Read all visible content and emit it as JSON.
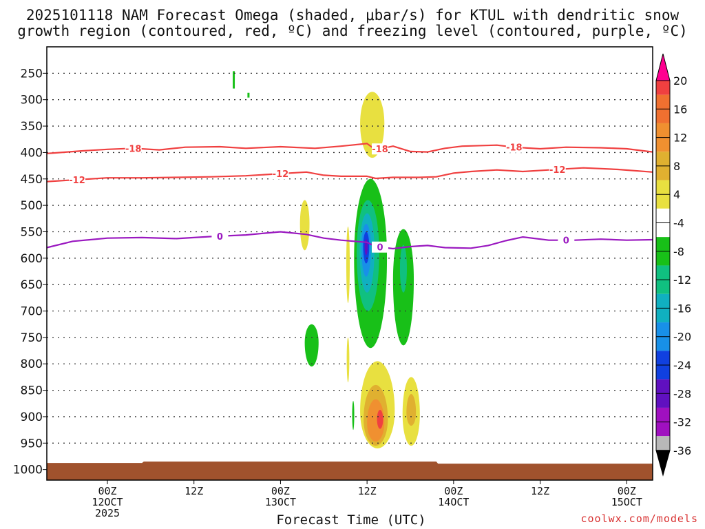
{
  "chart_data": {
    "type": "heatmap",
    "title_line1": "2025101118 NAM Forecast Omega (shaded, μbar/s) for KTUL with dendritic snow",
    "title_line2": "growth region (contoured, red, ºC) and freezing level (contoured, purple, ºC)",
    "xlabel": "Forecast Time (UTC)",
    "credit": "coolwx.com/models",
    "x_range_hours": [
      -7,
      63
    ],
    "x_ticks": [
      {
        "hour": 0,
        "lines": [
          "00Z",
          "12OCT",
          "2025"
        ]
      },
      {
        "hour": 10,
        "lines": [
          "12Z"
        ]
      },
      {
        "hour": 20,
        "lines": [
          "00Z",
          "13OCT"
        ]
      },
      {
        "hour": 30,
        "lines": [
          "12Z"
        ]
      },
      {
        "hour": 40,
        "lines": [
          "00Z",
          "14OCT"
        ]
      },
      {
        "hour": 50,
        "lines": [
          "12Z"
        ]
      },
      {
        "hour": 60,
        "lines": [
          "00Z",
          "15OCT"
        ]
      }
    ],
    "y_range_hpa": [
      1020,
      200
    ],
    "y_ticks": [
      250,
      300,
      350,
      400,
      450,
      500,
      550,
      600,
      650,
      700,
      750,
      800,
      850,
      900,
      950,
      1000
    ],
    "colorbar": {
      "labels": [
        "20",
        "16",
        "12",
        "8",
        "4",
        "-4",
        "-8",
        "-12",
        "-16",
        "-20",
        "-24",
        "-28",
        "-32",
        "-36"
      ],
      "colors": [
        "#ff0090",
        "#f04040",
        "#f07030",
        "#f09030",
        "#e0b030",
        "#e8e040",
        "#ffffff",
        "#18c018",
        "#10c080",
        "#10b0c0",
        "#1890e8",
        "#1040e0",
        "#6010c0",
        "#a010c0",
        "#b8b8b8",
        "#000000"
      ]
    },
    "contours": [
      {
        "name": "-18C isotherm",
        "color": "#f04040",
        "label": "-18",
        "points": [
          [
            -7,
            402
          ],
          [
            -3,
            397
          ],
          [
            0,
            394
          ],
          [
            3,
            392
          ],
          [
            6,
            395
          ],
          [
            9,
            390
          ],
          [
            13,
            389
          ],
          [
            16,
            392
          ],
          [
            20,
            389
          ],
          [
            24,
            392
          ],
          [
            27,
            388
          ],
          [
            30,
            383
          ],
          [
            31,
            395
          ],
          [
            33,
            388
          ],
          [
            35,
            398
          ],
          [
            37,
            399
          ],
          [
            39,
            392
          ],
          [
            41,
            388
          ],
          [
            45,
            386
          ],
          [
            47,
            390
          ],
          [
            50,
            393
          ],
          [
            53,
            390
          ],
          [
            57,
            391
          ],
          [
            60,
            393
          ],
          [
            63,
            399
          ]
        ],
        "label_hours": [
          3,
          31.5,
          47
        ]
      },
      {
        "name": "-12C isotherm",
        "color": "#f04040",
        "label": "-12",
        "points": [
          [
            -7,
            455
          ],
          [
            -4,
            452
          ],
          [
            0,
            448
          ],
          [
            4,
            448
          ],
          [
            8,
            447
          ],
          [
            12,
            446
          ],
          [
            16,
            444
          ],
          [
            20,
            440
          ],
          [
            23,
            437
          ],
          [
            25,
            443
          ],
          [
            27,
            445
          ],
          [
            30,
            445
          ],
          [
            31,
            449
          ],
          [
            33,
            447
          ],
          [
            36,
            447
          ],
          [
            38,
            446
          ],
          [
            40,
            439
          ],
          [
            42,
            436
          ],
          [
            45,
            433
          ],
          [
            48,
            436
          ],
          [
            51,
            433
          ],
          [
            55,
            429
          ],
          [
            59,
            432
          ],
          [
            63,
            437
          ]
        ],
        "label_hours": [
          -3.5,
          20,
          52
        ]
      },
      {
        "name": "0C freezing level",
        "color": "#9a18c0",
        "label": "0",
        "points": [
          [
            -7,
            580
          ],
          [
            -4,
            568
          ],
          [
            0,
            562
          ],
          [
            4,
            561
          ],
          [
            8,
            563
          ],
          [
            12,
            559
          ],
          [
            16,
            556
          ],
          [
            20,
            550
          ],
          [
            23,
            555
          ],
          [
            25,
            562
          ],
          [
            27,
            566
          ],
          [
            30,
            570
          ],
          [
            31,
            578
          ],
          [
            33,
            582
          ],
          [
            35,
            578
          ],
          [
            37,
            576
          ],
          [
            39,
            580
          ],
          [
            42,
            581
          ],
          [
            44,
            576
          ],
          [
            46,
            567
          ],
          [
            48,
            560
          ],
          [
            51,
            566
          ],
          [
            54,
            566
          ],
          [
            57,
            564
          ],
          [
            60,
            566
          ],
          [
            63,
            565
          ]
        ],
        "label_hours": [
          13,
          31.5,
          53
        ]
      }
    ],
    "omega_regions": [
      {
        "value": "4 to 8",
        "center_hour": 30.5,
        "center_hpa": 345
      },
      {
        "value": "-8 to -32",
        "center_hour": 30,
        "center_hpa": 600
      },
      {
        "value": "-4 to -8",
        "center_hour": 34,
        "center_hpa": 630
      },
      {
        "value": "4 to 20",
        "center_hour": 31,
        "center_hpa": 890
      },
      {
        "value": "4 to 12",
        "center_hour": 35,
        "center_hpa": 890
      }
    ],
    "surface_terrain_color": "#a0522d"
  }
}
